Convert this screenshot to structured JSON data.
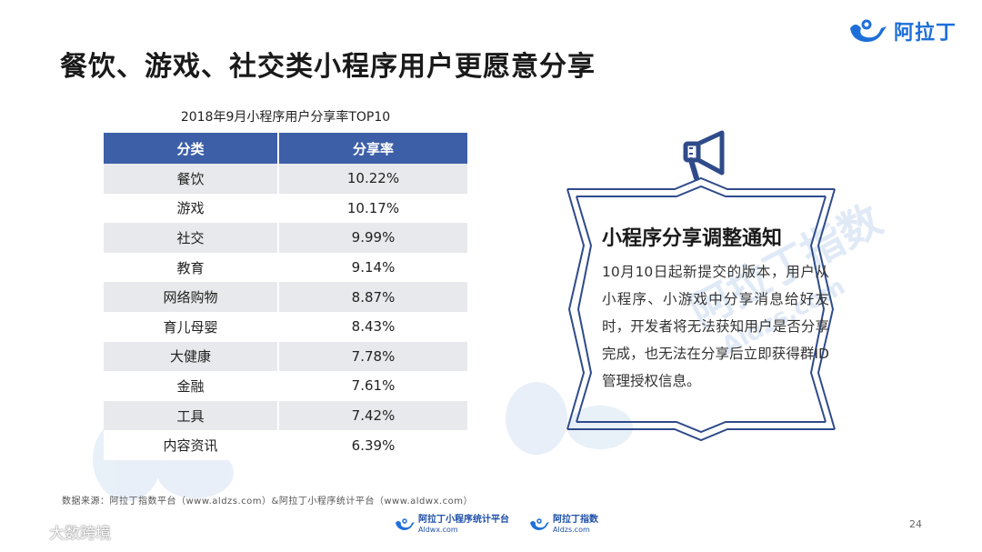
{
  "brand": {
    "name": "阿拉丁"
  },
  "title": "餐饮、游戏、社交类小程序用户更愿意分享",
  "table": {
    "caption": "2018年9月小程序用户分享率TOP10",
    "headers": [
      "分类",
      "分享率"
    ],
    "rows": [
      [
        "餐饮",
        "10.22%"
      ],
      [
        "游戏",
        "10.17%"
      ],
      [
        "社交",
        "9.99%"
      ],
      [
        "教育",
        "9.14%"
      ],
      [
        "网络购物",
        "8.87%"
      ],
      [
        "育儿母婴",
        "8.43%"
      ],
      [
        "大健康",
        "7.78%"
      ],
      [
        "金融",
        "7.61%"
      ],
      [
        "工具",
        "7.42%"
      ],
      [
        "内容资讯",
        "6.39%"
      ]
    ]
  },
  "notice": {
    "title": "小程序分享调整通知",
    "body": "10月10日起新提交的版本，用户从小程序、小游戏中分享消息给好友时，开发者将无法获知用户是否分享完成，也无法在分享后立即获得群ID管理授权信息。",
    "icon": "megaphone-icon"
  },
  "source": "数据来源：阿拉丁指数平台（www.aldzs.com）&阿拉丁小程序统计平台（www.aldwx.com）",
  "footer": {
    "logo1_main": "阿拉丁小程序统计平台",
    "logo1_sub": "Aldwx.com",
    "logo2_main": "阿拉丁指数",
    "logo2_sub": "Aldzs.com"
  },
  "page_number": "24",
  "watermark": {
    "text": "大数跨境",
    "big_text_1": "阿拉丁指数",
    "big_text_2": "Aldzs.com"
  },
  "colors": {
    "header": "#3d5fa8",
    "brand": "#1e6fd9",
    "frame": "#2f4b8a"
  }
}
